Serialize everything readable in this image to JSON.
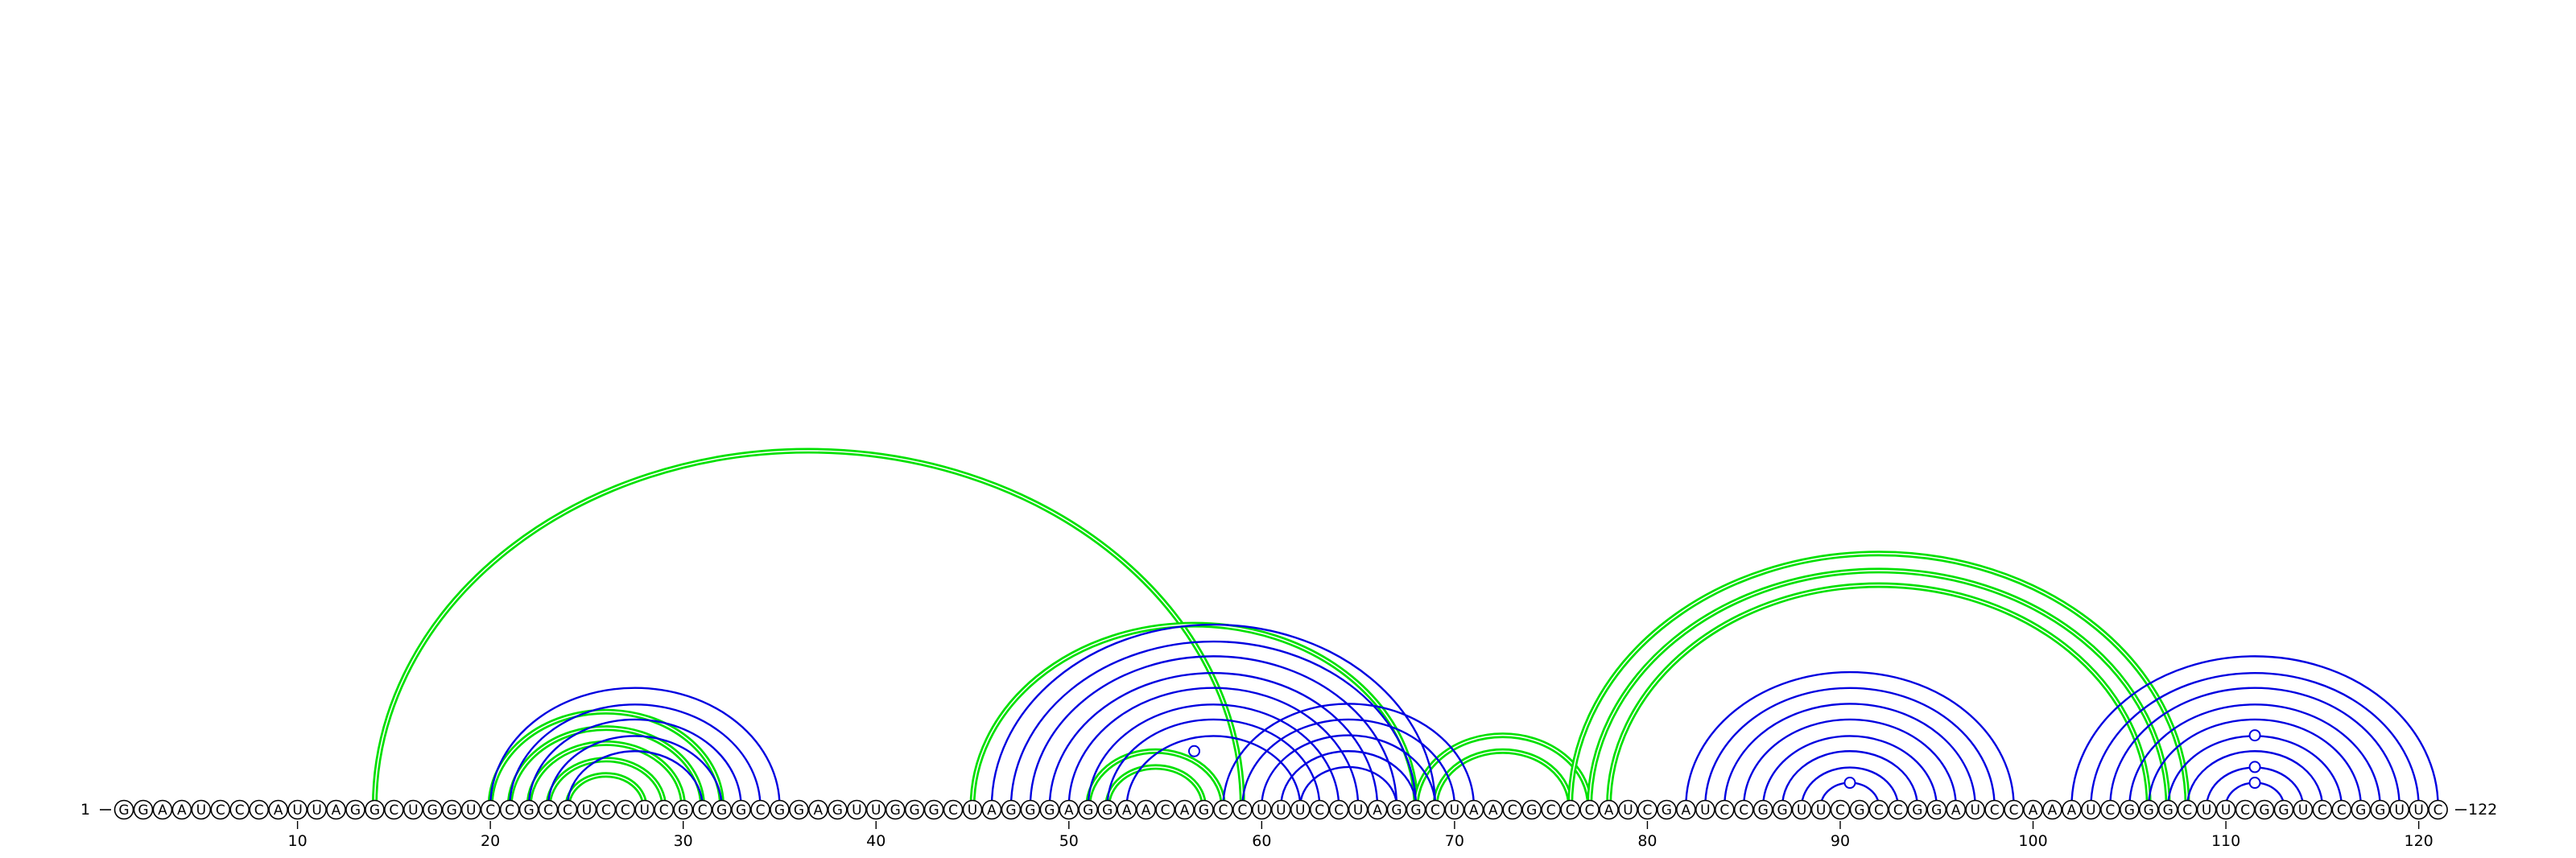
{
  "sequence": "GGAAUCCCAUUAGGCUGGUCCGCCUCCUCGCGGCGGAGUUGGGCUAGGGAGGAACAGCCUUUCCUAGGCUAACGCCCAUCGAUCCGGUUCGCCGGAUCCAAAUCGGGCUUCGGUCCGGUUC",
  "start_label": "1",
  "end_label": "122",
  "ticks": [
    10,
    20,
    30,
    40,
    50,
    60,
    70,
    80,
    90,
    100,
    110,
    120
  ],
  "colors": {
    "blue": "#0000e0",
    "green": "#00e000",
    "backbone": "#000000"
  },
  "blue_pairs": [
    [
      20,
      35
    ],
    [
      21,
      34
    ],
    [
      22,
      33
    ],
    [
      23,
      32
    ],
    [
      24,
      31
    ],
    [
      46,
      69
    ],
    [
      47,
      68
    ],
    [
      48,
      67
    ],
    [
      49,
      66
    ],
    [
      50,
      65
    ],
    [
      51,
      64
    ],
    [
      52,
      63
    ],
    [
      53,
      62
    ],
    [
      58,
      71
    ],
    [
      59,
      70
    ],
    [
      60,
      69
    ],
    [
      61,
      68
    ],
    [
      62,
      67
    ],
    [
      82,
      99
    ],
    [
      83,
      98
    ],
    [
      84,
      97
    ],
    [
      85,
      96
    ],
    [
      86,
      95
    ],
    [
      87,
      94
    ],
    [
      88,
      93
    ],
    [
      89,
      92
    ],
    [
      102,
      121
    ],
    [
      103,
      120
    ],
    [
      104,
      119
    ],
    [
      105,
      118
    ],
    [
      106,
      117
    ],
    [
      107,
      116
    ],
    [
      108,
      115
    ],
    [
      109,
      114
    ],
    [
      110,
      113
    ]
  ],
  "green_pairs": [
    [
      14,
      59
    ],
    [
      20,
      32
    ],
    [
      21,
      31
    ],
    [
      22,
      30
    ],
    [
      23,
      29
    ],
    [
      24,
      28
    ],
    [
      45,
      68
    ],
    [
      51,
      58
    ],
    [
      52,
      57
    ],
    [
      68,
      77
    ],
    [
      69,
      76
    ],
    [
      76,
      108
    ],
    [
      77,
      107
    ],
    [
      78,
      106
    ]
  ],
  "gu_markers": [
    {
      "i": 53,
      "j": 60
    },
    {
      "i": 89,
      "j": 92
    },
    {
      "i": 107,
      "j": 116
    },
    {
      "i": 109,
      "j": 114
    },
    {
      "i": 110,
      "j": 113
    }
  ]
}
